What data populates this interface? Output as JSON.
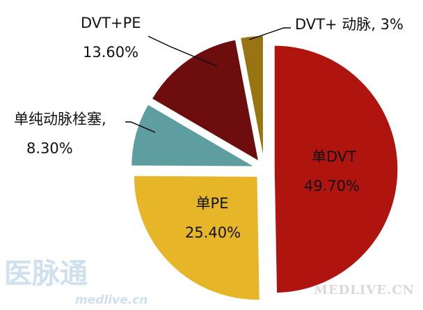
{
  "chart_data": {
    "type": "pie",
    "title": "",
    "slices": [
      {
        "label": "单DVT",
        "value_label": "49.70%",
        "value": 49.7,
        "color": "#b0140f"
      },
      {
        "label": "单PE",
        "value_label": "25.40%",
        "value": 25.4,
        "color": "#e6b628"
      },
      {
        "label": "单纯动脉栓塞,",
        "value_label": "8.30%",
        "value": 8.3,
        "color": "#5f9ea0"
      },
      {
        "label": "DVT+PE",
        "value_label": "13.60%",
        "value": 13.6,
        "color": "#6e0d0d"
      },
      {
        "label": "DVT+ 动脉, 3%",
        "value_label": "",
        "value": 3.0,
        "color": "#987512"
      }
    ]
  },
  "watermark": {
    "logo_text": "医脉通",
    "logo_sub": "medlive.cn",
    "corner_text": "MEDLIVE.CN",
    "logo_color": "#cfe0ee",
    "corner_color": "#d9d9d9"
  }
}
